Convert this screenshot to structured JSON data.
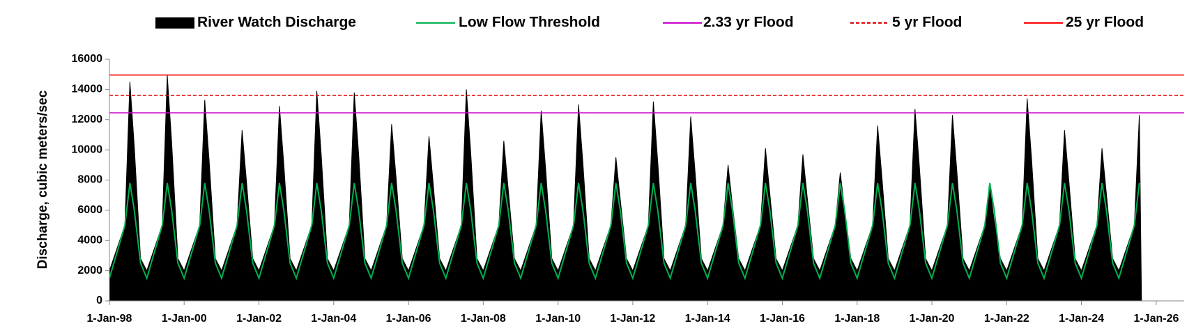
{
  "chart_data": {
    "type": "area",
    "y_label": "Discharge, cubic meters/sec",
    "xlim": [
      "1998-01-01",
      "2026-10-01"
    ],
    "ylim": [
      0,
      16000
    ],
    "yticks": [
      0,
      2000,
      4000,
      6000,
      8000,
      10000,
      12000,
      14000,
      16000
    ],
    "xticks": [
      {
        "value": "1998-01-01",
        "label": "1-Jan-98"
      },
      {
        "value": "2000-01-01",
        "label": "1-Jan-00"
      },
      {
        "value": "2002-01-01",
        "label": "1-Jan-02"
      },
      {
        "value": "2004-01-01",
        "label": "1-Jan-04"
      },
      {
        "value": "2006-01-01",
        "label": "1-Jan-06"
      },
      {
        "value": "2008-01-01",
        "label": "1-Jan-08"
      },
      {
        "value": "2010-01-01",
        "label": "1-Jan-10"
      },
      {
        "value": "2012-01-01",
        "label": "1-Jan-12"
      },
      {
        "value": "2014-01-01",
        "label": "1-Jan-14"
      },
      {
        "value": "2016-01-01",
        "label": "1-Jan-16"
      },
      {
        "value": "2018-01-01",
        "label": "1-Jan-18"
      },
      {
        "value": "2020-01-01",
        "label": "1-Jan-20"
      },
      {
        "value": "2022-01-01",
        "label": "1-Jan-22"
      },
      {
        "value": "2024-01-01",
        "label": "1-Jan-24"
      },
      {
        "value": "2026-01-01",
        "label": "1-Jan-26"
      }
    ],
    "x": [
      "1998-01-01",
      "1998-06-01",
      "1998-07-20",
      "1998-09-01",
      "1998-11-01",
      "1999-01-01",
      "1999-06-01",
      "1999-07-20",
      "1999-09-01",
      "1999-11-01",
      "2000-01-01",
      "2000-06-01",
      "2000-07-20",
      "2000-09-01",
      "2000-11-01",
      "2001-01-01",
      "2001-06-01",
      "2001-07-20",
      "2001-09-01",
      "2001-11-01",
      "2002-01-01",
      "2002-06-01",
      "2002-07-20",
      "2002-09-01",
      "2002-11-01",
      "2003-01-01",
      "2003-06-01",
      "2003-07-20",
      "2003-09-01",
      "2003-11-01",
      "2004-01-01",
      "2004-06-01",
      "2004-07-20",
      "2004-09-01",
      "2004-11-01",
      "2005-01-01",
      "2005-06-01",
      "2005-07-20",
      "2005-09-01",
      "2005-11-01",
      "2006-01-01",
      "2006-06-01",
      "2006-07-20",
      "2006-09-01",
      "2006-11-01",
      "2007-01-01",
      "2007-06-01",
      "2007-07-20",
      "2007-09-01",
      "2007-11-01",
      "2008-01-01",
      "2008-06-01",
      "2008-07-20",
      "2008-09-01",
      "2008-11-01",
      "2009-01-01",
      "2009-06-01",
      "2009-07-20",
      "2009-09-01",
      "2009-11-01",
      "2010-01-01",
      "2010-06-01",
      "2010-07-20",
      "2010-09-01",
      "2010-11-01",
      "2011-01-01",
      "2011-06-01",
      "2011-07-20",
      "2011-09-01",
      "2011-11-01",
      "2012-01-01",
      "2012-06-01",
      "2012-07-20",
      "2012-09-01",
      "2012-11-01",
      "2013-01-01",
      "2013-06-01",
      "2013-07-20",
      "2013-09-01",
      "2013-11-01",
      "2014-01-01",
      "2014-06-01",
      "2014-07-20",
      "2014-09-01",
      "2014-11-01",
      "2015-01-01",
      "2015-06-01",
      "2015-07-20",
      "2015-09-01",
      "2015-11-01",
      "2016-01-01",
      "2016-06-01",
      "2016-07-20",
      "2016-09-01",
      "2016-11-01",
      "2017-01-01",
      "2017-06-01",
      "2017-07-20",
      "2017-09-01",
      "2017-11-01",
      "2018-01-01",
      "2018-06-01",
      "2018-07-20",
      "2018-09-01",
      "2018-11-01",
      "2019-01-01",
      "2019-06-01",
      "2019-07-20",
      "2019-09-01",
      "2019-11-01",
      "2020-01-01",
      "2020-06-01",
      "2020-07-20",
      "2020-09-01",
      "2020-11-01",
      "2021-01-01",
      "2021-06-01",
      "2021-07-20",
      "2021-09-01",
      "2021-11-01",
      "2022-01-01",
      "2022-06-01",
      "2022-07-20",
      "2022-09-01",
      "2022-11-01",
      "2023-01-01",
      "2023-06-01",
      "2023-07-20",
      "2023-09-01",
      "2023-11-01",
      "2024-01-01",
      "2024-06-01",
      "2024-07-20",
      "2024-09-01",
      "2024-11-01",
      "2025-01-01",
      "2025-06-01",
      "2025-07-20",
      "2025-08-10",
      "2025-11-20"
    ],
    "series": [
      {
        "name": "River Watch Discharge",
        "color": "#000000",
        "style": "area",
        "values": [
          2000,
          5000,
          14500,
          10200,
          2800,
          2000,
          5000,
          14950,
          10500,
          2800,
          2000,
          5000,
          13300,
          9300,
          2800,
          2000,
          5000,
          11300,
          7900,
          2800,
          2000,
          5000,
          12900,
          9000,
          2800,
          2000,
          5000,
          13900,
          9700,
          2800,
          2000,
          5000,
          13800,
          9700,
          2800,
          2000,
          5000,
          11700,
          8200,
          2800,
          2000,
          5000,
          10900,
          7600,
          2800,
          2000,
          5000,
          14000,
          9800,
          2800,
          2000,
          5000,
          10600,
          7400,
          2800,
          2000,
          5000,
          12600,
          8800,
          2800,
          2000,
          5000,
          13000,
          9100,
          2800,
          2000,
          5000,
          9500,
          6700,
          2800,
          2000,
          5000,
          13200,
          9200,
          2800,
          2000,
          5000,
          12200,
          8500,
          2800,
          2000,
          5000,
          9000,
          6300,
          2800,
          2000,
          5000,
          10100,
          7100,
          2800,
          2000,
          5000,
          9700,
          6800,
          2800,
          2000,
          5000,
          8500,
          6000,
          2800,
          2000,
          5000,
          11600,
          8100,
          2800,
          2000,
          5000,
          12700,
          8900,
          2800,
          2000,
          5000,
          12300,
          8600,
          2800,
          2000,
          5000,
          7600,
          5300,
          2800,
          2000,
          5000,
          13400,
          9400,
          2800,
          2000,
          5000,
          11300,
          7900,
          2800,
          2000,
          5000,
          10100,
          7100,
          2800,
          2000,
          5000,
          12300,
          0,
          0
        ]
      },
      {
        "name": "Low Flow Threshold",
        "color": "#00b050",
        "style": "line",
        "values": [
          1500,
          5000,
          7800,
          6000,
          2500,
          1500,
          5000,
          7800,
          6000,
          2500,
          1500,
          5000,
          7800,
          6000,
          2500,
          1500,
          5000,
          7800,
          6000,
          2500,
          1500,
          5000,
          7800,
          6000,
          2500,
          1500,
          5000,
          7800,
          6000,
          2500,
          1500,
          5000,
          7800,
          6000,
          2500,
          1500,
          5000,
          7800,
          6000,
          2500,
          1500,
          5000,
          7800,
          6000,
          2500,
          1500,
          5000,
          7800,
          6000,
          2500,
          1500,
          5000,
          7800,
          6000,
          2500,
          1500,
          5000,
          7800,
          6000,
          2500,
          1500,
          5000,
          7800,
          6000,
          2500,
          1500,
          5000,
          7800,
          6000,
          2500,
          1500,
          5000,
          7800,
          6000,
          2500,
          1500,
          5000,
          7800,
          6000,
          2500,
          1500,
          5000,
          7800,
          6000,
          2500,
          1500,
          5000,
          7800,
          6000,
          2500,
          1500,
          5000,
          7800,
          6000,
          2500,
          1500,
          5000,
          7800,
          6000,
          2500,
          1500,
          5000,
          7800,
          6000,
          2500,
          1500,
          5000,
          7800,
          6000,
          2500,
          1500,
          5000,
          7800,
          6000,
          2500,
          1500,
          5000,
          7800,
          6000,
          2500,
          1500,
          5000,
          7800,
          6000,
          2500,
          1500,
          5000,
          7800,
          6000,
          2500,
          1500,
          5000,
          7800,
          6000,
          2500,
          1500,
          5000,
          7800,
          null,
          null
        ]
      }
    ],
    "reference_lines": [
      {
        "name": "2.33 yr Flood",
        "color": "#cc00cc",
        "dashed": false,
        "value": 12450
      },
      {
        "name": "5 yr Flood",
        "color": "#e00000",
        "dashed": true,
        "value": 13600
      },
      {
        "name": "25 yr Flood",
        "color": "#ff0000",
        "dashed": false,
        "value": 14950
      }
    ]
  }
}
